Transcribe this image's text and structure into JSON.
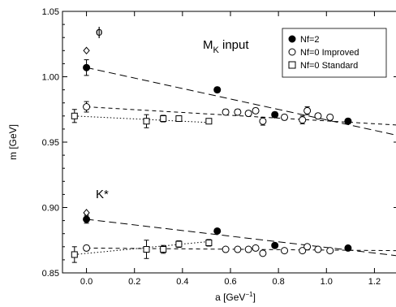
{
  "chart_data": {
    "type": "scatter",
    "xlabel": "a [GeV",
    "xlabel_sup": "−1",
    "xlabel_close": "]",
    "ylabel": "m [GeV]",
    "xlim": [
      -0.1,
      1.3
    ],
    "ylim": [
      0.85,
      1.05
    ],
    "x_ticks": [
      0.0,
      0.2,
      0.4,
      0.6,
      0.8,
      1.0,
      1.2
    ],
    "x_tick_labels": [
      "0.0",
      "0.2",
      "0.4",
      "0.6",
      "0.8",
      "1.0",
      "1.2"
    ],
    "y_ticks": [
      0.85,
      0.9,
      0.95,
      1.0,
      1.05
    ],
    "y_tick_labels": [
      "0.85",
      "0.90",
      "0.95",
      "1.00",
      "1.05"
    ],
    "grid": false,
    "legend_placement": "top-right",
    "annotations": {
      "phi": "ϕ",
      "mk_main": "M",
      "mk_sub": "K",
      "mk_rest": " input",
      "kstar": "K*"
    },
    "series": [
      {
        "name": "Nf=2",
        "marker": "filled-circle",
        "points": [
          {
            "x": 0.0,
            "y": 1.007,
            "err": 0.006
          },
          {
            "x": 0.545,
            "y": 0.99,
            "err": 0.002
          },
          {
            "x": 0.785,
            "y": 0.971,
            "err": 0.002
          },
          {
            "x": 1.09,
            "y": 0.966,
            "err": 0.002
          },
          {
            "x": 0.0,
            "y": 0.891,
            "err": 0.003
          },
          {
            "x": 0.545,
            "y": 0.882,
            "err": 0.0015
          },
          {
            "x": 0.785,
            "y": 0.871,
            "err": 0.0015
          },
          {
            "x": 1.09,
            "y": 0.869,
            "err": 0.0015
          }
        ]
      },
      {
        "name": "Nf=0 Improved",
        "marker": "open-circle",
        "points": [
          {
            "x": 0.0,
            "y": 0.977,
            "err": 0.004
          },
          {
            "x": 0.58,
            "y": 0.973,
            "err": 0.002
          },
          {
            "x": 0.63,
            "y": 0.973,
            "err": 0.002
          },
          {
            "x": 0.675,
            "y": 0.972,
            "err": 0.002
          },
          {
            "x": 0.705,
            "y": 0.974,
            "err": 0.002
          },
          {
            "x": 0.735,
            "y": 0.966,
            "err": 0.003
          },
          {
            "x": 0.825,
            "y": 0.969,
            "err": 0.002
          },
          {
            "x": 0.9,
            "y": 0.967,
            "err": 0.003
          },
          {
            "x": 0.92,
            "y": 0.974,
            "err": 0.003
          },
          {
            "x": 0.965,
            "y": 0.97,
            "err": 0.002
          },
          {
            "x": 1.015,
            "y": 0.969,
            "err": 0.002
          },
          {
            "x": 0.0,
            "y": 0.869,
            "err": 0.002
          },
          {
            "x": 0.58,
            "y": 0.868,
            "err": 0.0015
          },
          {
            "x": 0.63,
            "y": 0.868,
            "err": 0.0015
          },
          {
            "x": 0.675,
            "y": 0.868,
            "err": 0.0015
          },
          {
            "x": 0.705,
            "y": 0.869,
            "err": 0.0015
          },
          {
            "x": 0.735,
            "y": 0.865,
            "err": 0.0015
          },
          {
            "x": 0.825,
            "y": 0.867,
            "err": 0.0015
          },
          {
            "x": 0.9,
            "y": 0.867,
            "err": 0.0015
          },
          {
            "x": 0.92,
            "y": 0.87,
            "err": 0.0015
          },
          {
            "x": 0.965,
            "y": 0.868,
            "err": 0.0015
          },
          {
            "x": 1.015,
            "y": 0.867,
            "err": 0.0015
          }
        ]
      },
      {
        "name": "Nf=0 Standard",
        "marker": "open-square",
        "points": [
          {
            "x": -0.05,
            "y": 0.97,
            "err": 0.005
          },
          {
            "x": 0.25,
            "y": 0.966,
            "err": 0.005
          },
          {
            "x": 0.32,
            "y": 0.968,
            "err": 0.0025
          },
          {
            "x": 0.385,
            "y": 0.968,
            "err": 0.002
          },
          {
            "x": 0.51,
            "y": 0.966,
            "err": 0.002
          },
          {
            "x": -0.05,
            "y": 0.864,
            "err": 0.006
          },
          {
            "x": 0.25,
            "y": 0.868,
            "err": 0.007
          },
          {
            "x": 0.32,
            "y": 0.868,
            "err": 0.003
          },
          {
            "x": 0.385,
            "y": 0.872,
            "err": 0.0025
          },
          {
            "x": 0.51,
            "y": 0.873,
            "err": 0.0025
          }
        ]
      },
      {
        "marker": "open-diamond",
        "points": [
          {
            "x": 0.0,
            "y": 1.02
          },
          {
            "x": 0.0,
            "y": 0.896
          }
        ]
      }
    ],
    "fit_lines": [
      {
        "style": "long-dash",
        "x": [
          0.0,
          1.3
        ],
        "y": [
          1.007,
          0.955
        ]
      },
      {
        "style": "short-dash",
        "x": [
          0.0,
          1.3
        ],
        "y": [
          0.977,
          0.963
        ]
      },
      {
        "style": "dotted",
        "x": [
          -0.05,
          0.51
        ],
        "y": [
          0.97,
          0.965
        ]
      },
      {
        "style": "long-dash",
        "x": [
          0.0,
          1.3
        ],
        "y": [
          0.891,
          0.863
        ]
      },
      {
        "style": "short-dash",
        "x": [
          0.0,
          1.3
        ],
        "y": [
          0.869,
          0.867
        ]
      },
      {
        "style": "dotted",
        "x": [
          -0.05,
          0.51
        ],
        "y": [
          0.864,
          0.874
        ]
      }
    ]
  }
}
